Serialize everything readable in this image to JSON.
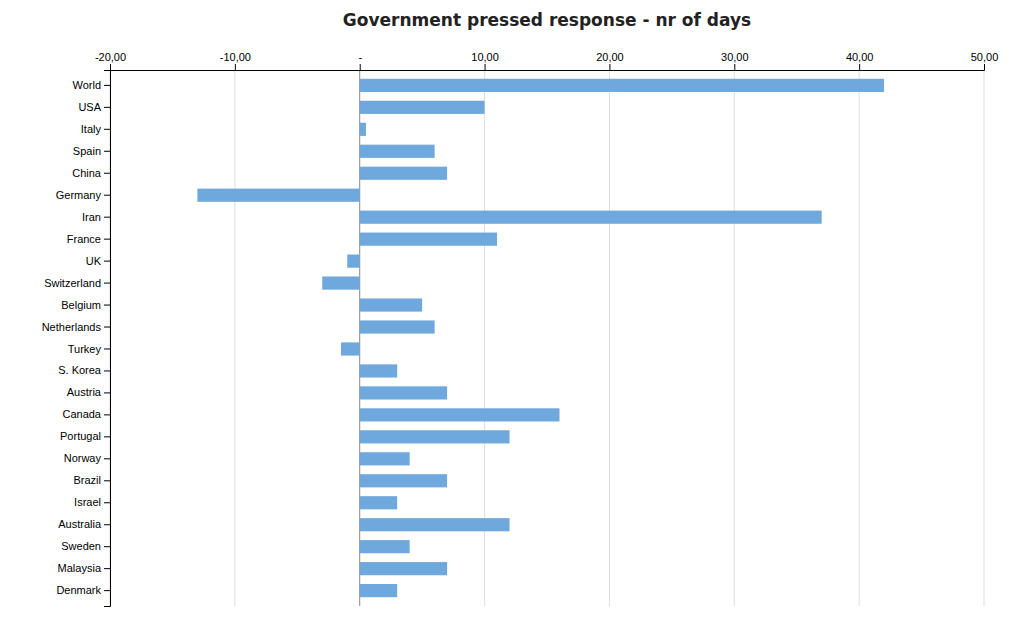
{
  "chart_data": {
    "type": "bar",
    "orientation": "horizontal",
    "title": "Government pressed response - nr of days",
    "categories": [
      "World",
      "USA",
      "Italy",
      "Spain",
      "China",
      "Germany",
      "Iran",
      "France",
      "UK",
      "Switzerland",
      "Belgium",
      "Netherlands",
      "Turkey",
      "S. Korea",
      "Austria",
      "Canada",
      "Portugal",
      "Norway",
      "Brazil",
      "Israel",
      "Australia",
      "Sweden",
      "Malaysia",
      "Denmark"
    ],
    "values": [
      42,
      10,
      0.5,
      6,
      7,
      -13,
      37,
      11,
      -1,
      -3,
      5,
      6,
      -1.5,
      3,
      7,
      16,
      12,
      4,
      7,
      3,
      12,
      4,
      7,
      3
    ],
    "color": "#6fa8dc",
    "xlim": [
      -20,
      50
    ],
    "xticks": [
      {
        "value": -20,
        "label": "-20,00"
      },
      {
        "value": -10,
        "label": "-10,00"
      },
      {
        "value": 0,
        "label": "-"
      },
      {
        "value": 10,
        "label": "10,00"
      },
      {
        "value": 20,
        "label": "20,00"
      },
      {
        "value": 30,
        "label": "30,00"
      },
      {
        "value": 40,
        "label": "40,00"
      },
      {
        "value": 50,
        "label": "50,00"
      }
    ],
    "grid": true
  }
}
